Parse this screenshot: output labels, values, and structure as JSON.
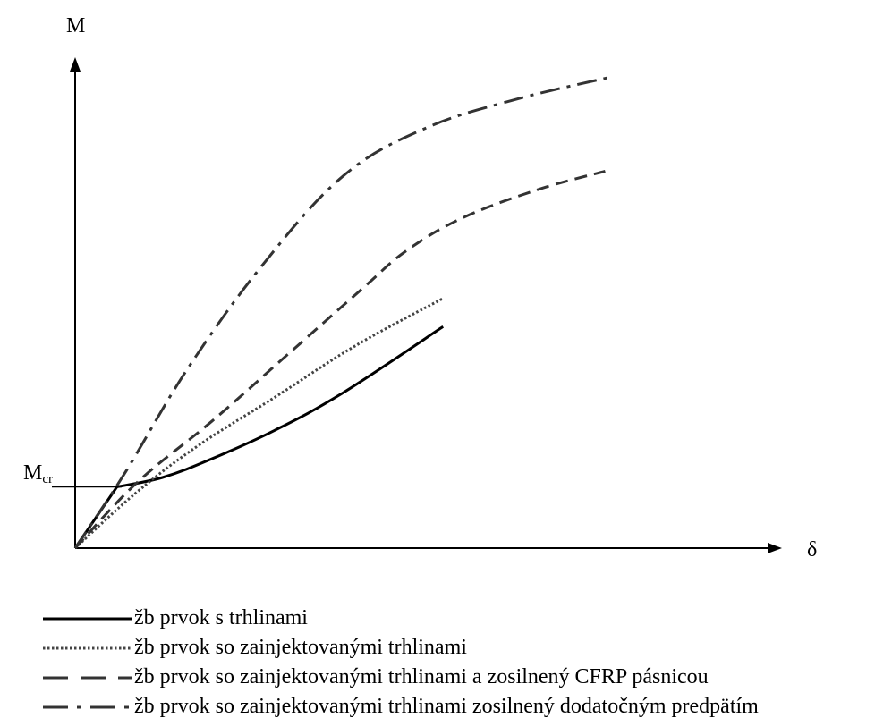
{
  "chart_data": {
    "type": "line",
    "title": "",
    "ylabel": "M",
    "xlabel": "δ",
    "y_marker": {
      "label_main": "M",
      "label_sub": "cr",
      "value": 0.13
    },
    "xlim": [
      0,
      1
    ],
    "ylim": [
      0,
      1
    ],
    "grid": false,
    "legend_placement": "bottom-left",
    "series": [
      {
        "name": "žb prvok s trhlinami",
        "style": "solid",
        "color": "#000000",
        "x": [
          0,
          0.067,
          0.14,
          0.22,
          0.32,
          0.43,
          0.59
        ],
        "y": [
          0,
          0.13,
          0.15,
          0.19,
          0.25,
          0.33,
          0.47
        ]
      },
      {
        "name": "žb prvok so zainjektovanými trhlinami",
        "style": "dotted",
        "color": "#444444",
        "x": [
          0,
          0.1,
          0.2,
          0.32,
          0.45,
          0.59
        ],
        "y": [
          0,
          0.12,
          0.22,
          0.32,
          0.43,
          0.53
        ]
      },
      {
        "name": "žb prvok so zainjektovanými trhlinami a zosilnený CFRP pásnicou",
        "style": "dashed",
        "color": "#333333",
        "x": [
          0,
          0.1,
          0.22,
          0.34,
          0.46,
          0.53,
          0.62,
          0.74,
          0.85
        ],
        "y": [
          0,
          0.14,
          0.27,
          0.41,
          0.55,
          0.63,
          0.7,
          0.76,
          0.8
        ]
      },
      {
        "name": "žb prvok so zainjektovanými trhlinami zosilnený dodatočným predpätím",
        "style": "dashdot",
        "color": "#333333",
        "x": [
          0,
          0.08,
          0.18,
          0.3,
          0.43,
          0.56,
          0.7,
          0.86
        ],
        "y": [
          0,
          0.16,
          0.38,
          0.6,
          0.79,
          0.89,
          0.95,
          1.0
        ]
      }
    ]
  }
}
